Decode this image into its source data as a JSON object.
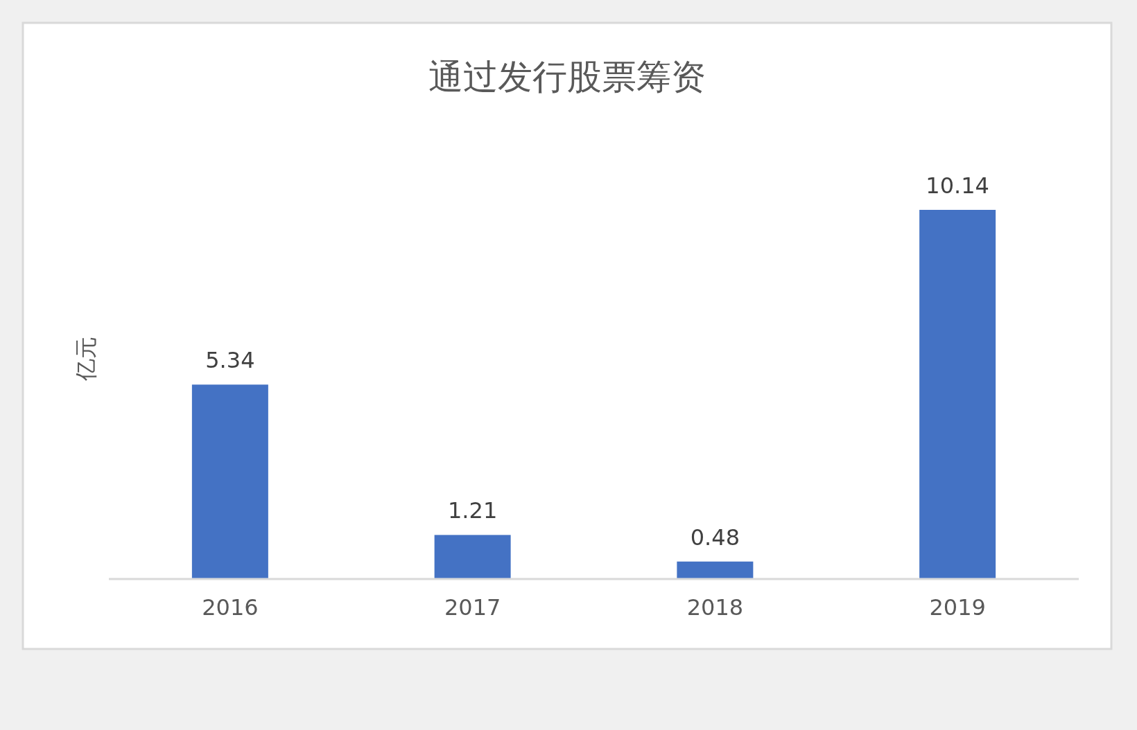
{
  "chart_data": {
    "type": "bar",
    "title": "通过发行股票筹资",
    "ylabel": "亿元",
    "categories": [
      "2016",
      "2017",
      "2018",
      "2019"
    ],
    "values": [
      5.34,
      1.21,
      0.48,
      10.14
    ],
    "color": "#4472c4",
    "data_labels": true
  }
}
